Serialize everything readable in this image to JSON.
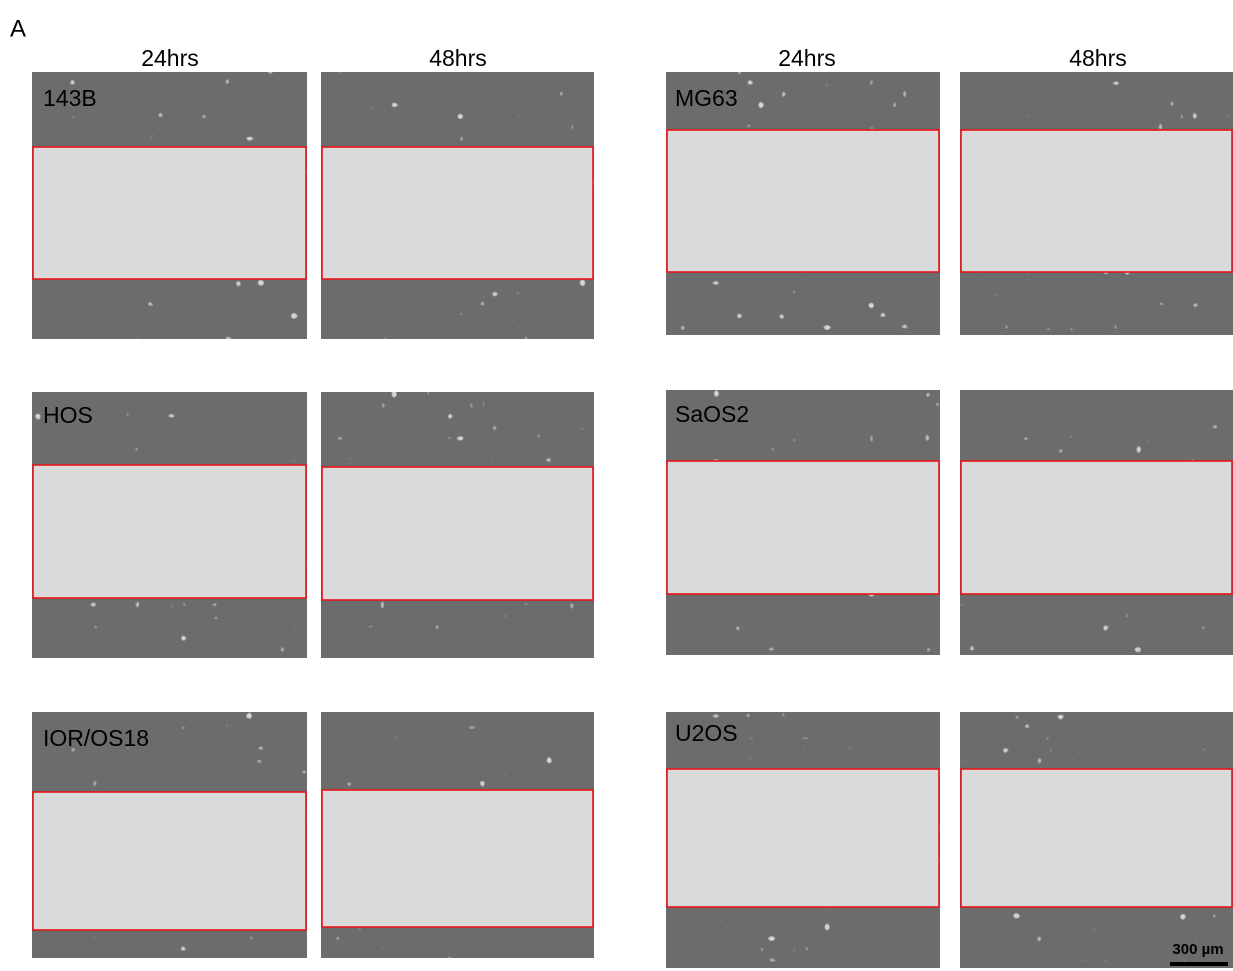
{
  "panel_label": "A",
  "column_headers": [
    "24hrs",
    "48hrs",
    "24hrs",
    "48hrs"
  ],
  "cell_lines": [
    "143B",
    "MG63",
    "HOS",
    "SaOS2",
    "IOR/OS18",
    "U2OS"
  ],
  "scale_bar": "300 µm"
}
